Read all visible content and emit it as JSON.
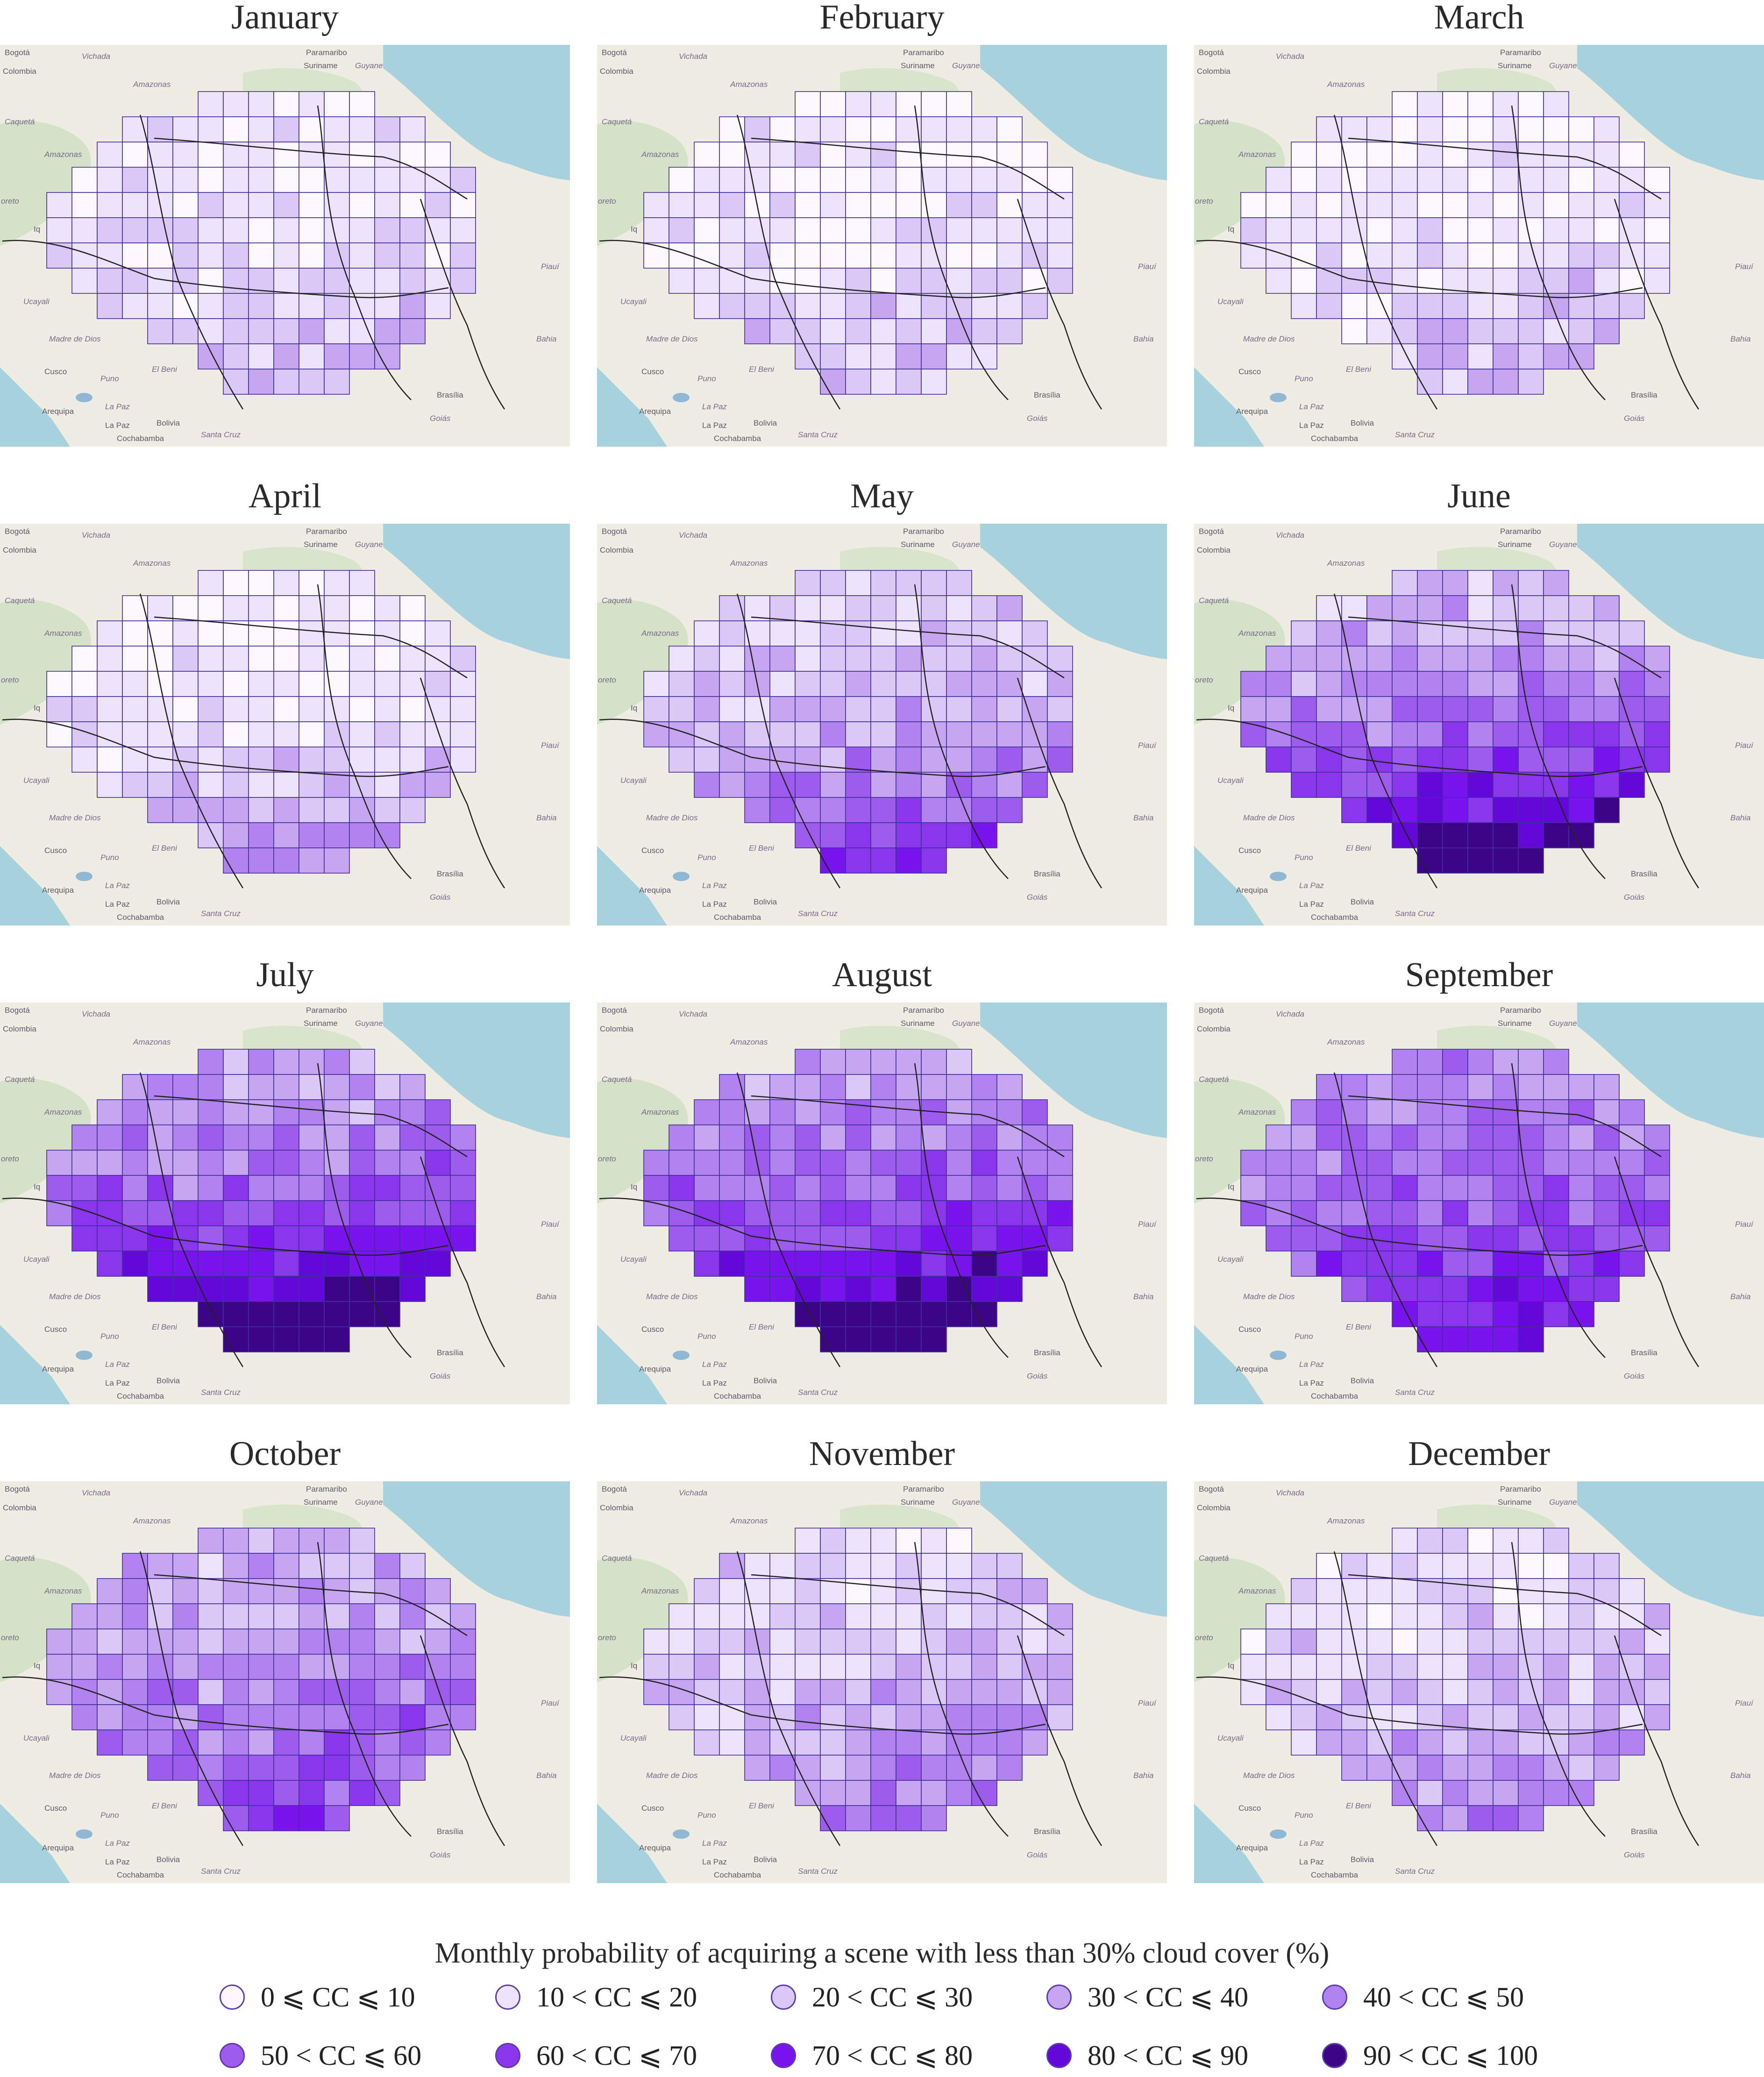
{
  "panels": [
    {
      "month": "January"
    },
    {
      "month": "February"
    },
    {
      "month": "March"
    },
    {
      "month": "April"
    },
    {
      "month": "May"
    },
    {
      "month": "June"
    },
    {
      "month": "July"
    },
    {
      "month": "August"
    },
    {
      "month": "September"
    },
    {
      "month": "October"
    },
    {
      "month": "November"
    },
    {
      "month": "December"
    }
  ],
  "basemap_labels": {
    "bogota": "Bogotá",
    "colombia": "Colombia",
    "vichada": "Vichada",
    "paramaribo": "Paramaribo",
    "suriname": "Suriname",
    "guyane": "Guyane",
    "amazonas_ve": "Amazonas",
    "caqueta": "Caquetá",
    "amazonas_co": "Amazonas",
    "loreto": "oreto",
    "iquitos": "Iq",
    "ucayali": "Ucayali",
    "madre_de_dios": "Madre de Dios",
    "cusco": "Cusco",
    "puno": "Puno",
    "arequipa": "Arequipa",
    "la_paz_dept": "La Paz",
    "la_paz": "La Paz",
    "el_beni": "El Beni",
    "bolivia": "Bolivia",
    "cochabamba": "Cochabamba",
    "santa_cruz": "Santa Cruz",
    "brasilia": "Brasília",
    "goias": "Goiás",
    "piaui": "Piauí",
    "bahia": "Bahia"
  },
  "colors": {
    "ocean": "#a7d1dc",
    "land": "#efece4",
    "vegetation": "#cfe1c2",
    "lake": "#8fb8d4",
    "tile_border": "#3f2f9a",
    "class_fills": [
      "#fbf9ff",
      "#ede3fb",
      "#dcc8f6",
      "#c7a6f1",
      "#b282ee",
      "#9d5cec",
      "#8a36ea",
      "#7a14ec",
      "#6208d8",
      "#3c0587"
    ]
  },
  "legend": {
    "title": "Monthly probability of acquiring a scene with less than 30% cloud cover (%)",
    "classes": [
      {
        "label": "0 ⩽ CC ⩽ 10"
      },
      {
        "label": "10 < CC ⩽ 20"
      },
      {
        "label": "20 < CC ⩽ 30"
      },
      {
        "label": "30 < CC ⩽ 40"
      },
      {
        "label": "40 < CC ⩽ 50"
      },
      {
        "label": "50 < CC ⩽ 60"
      },
      {
        "label": "60 < CC ⩽ 70"
      },
      {
        "label": "70 < CC ⩽ 80"
      },
      {
        "label": "80 < CC ⩽ 90"
      },
      {
        "label": "90 < CC ⩽ 100"
      }
    ]
  }
}
